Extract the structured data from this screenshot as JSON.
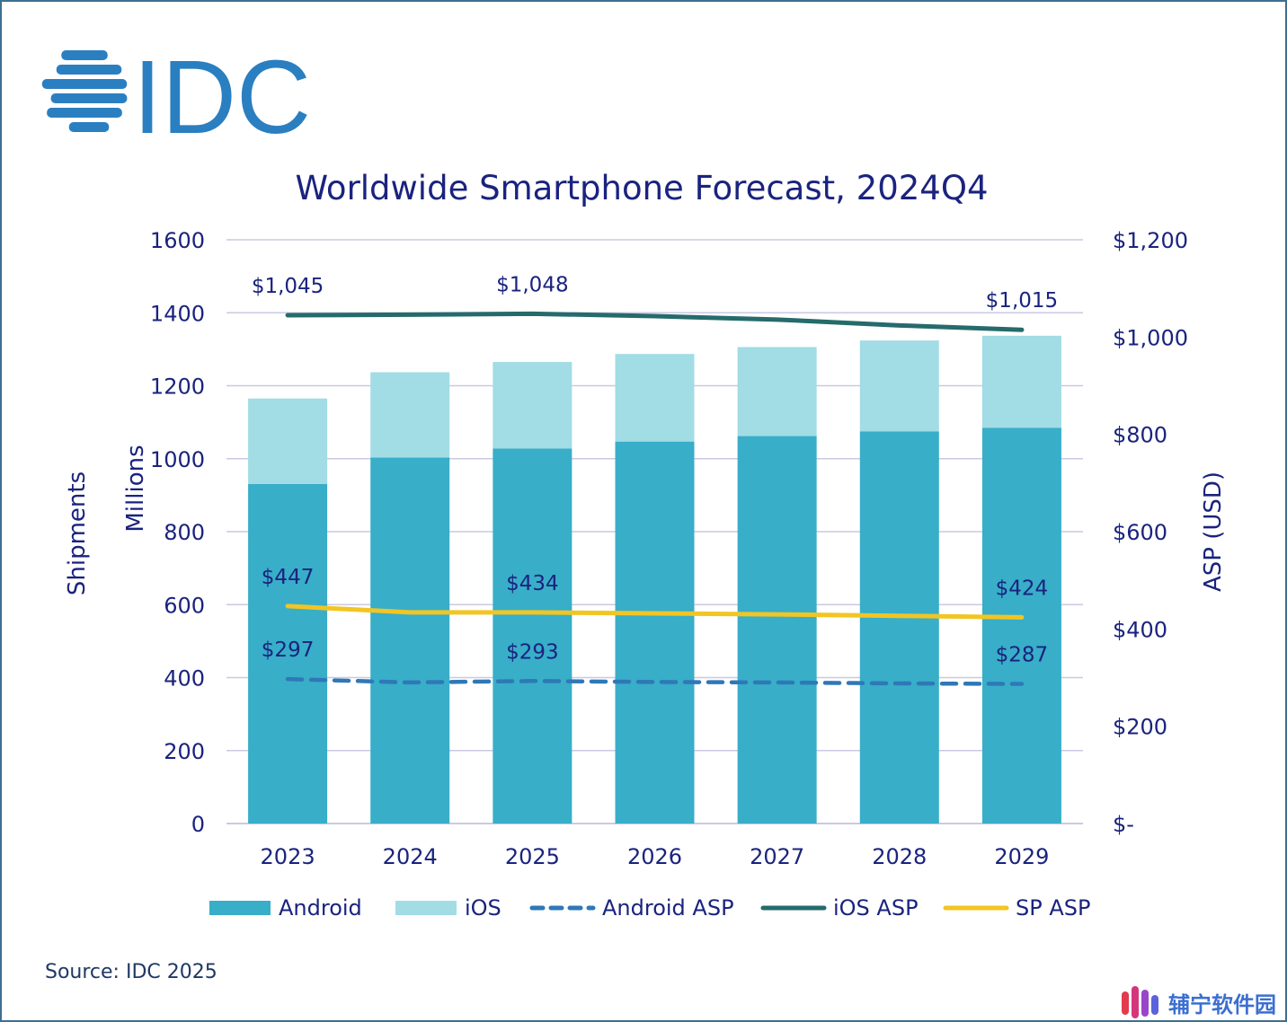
{
  "brand": {
    "logo_text": "IDC",
    "logo_color": "#2a7fc1"
  },
  "source": "Source: IDC 2025",
  "watermark": "辅宁软件园",
  "colors": {
    "android": "#38aec8",
    "ios": "#a2dce5",
    "android_asp": "#2f78b7",
    "ios_asp": "#266b6b",
    "sp_asp": "#f2c522",
    "text": "#1a237e",
    "grid": "#c9c9e3"
  },
  "chart_data": {
    "type": "bar",
    "stacked": true,
    "title": "Worldwide Smartphone Forecast, 2024Q4",
    "ylabel": "Shipments",
    "ylabel_units": "Millions",
    "y2label": "ASP (USD)",
    "categories": [
      "2023",
      "2024",
      "2025",
      "2026",
      "2027",
      "2028",
      "2029"
    ],
    "ylim": [
      0,
      1600
    ],
    "yticks": [
      "0",
      "200",
      "400",
      "600",
      "800",
      "1000",
      "1200",
      "1400",
      "1600"
    ],
    "y2lim": [
      0,
      1200
    ],
    "y2ticks": [
      "$-",
      "$200",
      "$400",
      "$600",
      "$800",
      "$1,000",
      "$1,200"
    ],
    "grid": true,
    "legend_position": "bottom",
    "series": [
      {
        "name": "Android",
        "kind": "bar",
        "values": [
          931,
          1003,
          1028,
          1047,
          1062,
          1075,
          1085
        ]
      },
      {
        "name": "iOS",
        "kind": "bar",
        "values": [
          234,
          234,
          237,
          240,
          244,
          249,
          252
        ]
      },
      {
        "name": "Android ASP",
        "kind": "line",
        "style": "dashed",
        "axis": "right",
        "values": [
          297,
          290,
          293,
          291,
          290,
          288,
          287
        ],
        "labels": {
          "0": "$297",
          "2": "$293",
          "6": "$287"
        }
      },
      {
        "name": "iOS ASP",
        "kind": "line",
        "style": "solid",
        "axis": "right",
        "values": [
          1045,
          1046,
          1048,
          1043,
          1036,
          1024,
          1015
        ],
        "labels": {
          "0": "$1,045",
          "2": "$1,048",
          "6": "$1,015"
        }
      },
      {
        "name": "SP ASP",
        "kind": "line",
        "style": "solid",
        "axis": "right",
        "values": [
          447,
          434,
          434,
          432,
          430,
          427,
          424
        ],
        "labels": {
          "0": "$447",
          "2": "$434",
          "6": "$424"
        }
      }
    ]
  }
}
